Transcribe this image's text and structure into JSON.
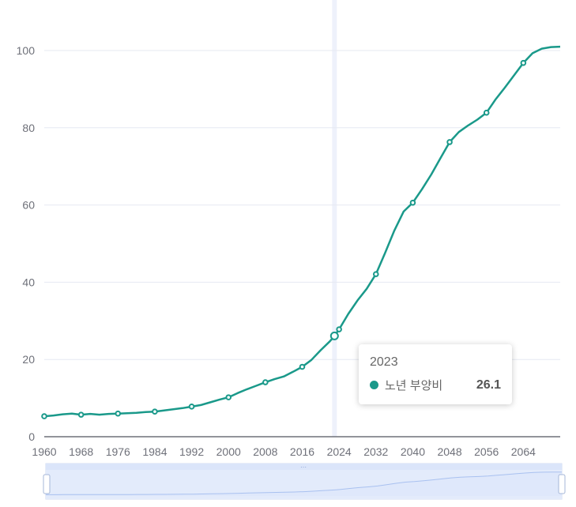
{
  "colors": {
    "line": "#1a998a",
    "grid": "#e6e9f2",
    "axis": "#6e7079",
    "pointer": "#eef1fb",
    "slider_fill": "#dfe8fb",
    "slider_line": "#a9c1f0"
  },
  "tooltip": {
    "year": "2023",
    "series_name": "노년 부양비",
    "value": "26.1"
  },
  "chart_data": {
    "type": "line",
    "title": "",
    "xlabel": "",
    "ylabel": "",
    "xlim": [
      1960,
      2072
    ],
    "ylim": [
      0,
      100
    ],
    "y_ticks": [
      0,
      20,
      40,
      60,
      80,
      100
    ],
    "x_ticks": [
      1960,
      1968,
      1976,
      1984,
      1992,
      2000,
      2008,
      2016,
      2024,
      2032,
      2040,
      2048,
      2056,
      2064
    ],
    "grid": true,
    "highlight": {
      "x": 2023,
      "y": 26.1
    },
    "series": [
      {
        "name": "노년 부양비",
        "x": [
          1960,
          1962,
          1964,
          1966,
          1968,
          1970,
          1972,
          1974,
          1976,
          1978,
          1980,
          1982,
          1984,
          1986,
          1988,
          1990,
          1992,
          1994,
          1996,
          1998,
          2000,
          2002,
          2004,
          2006,
          2008,
          2010,
          2012,
          2014,
          2016,
          2018,
          2020,
          2022,
          2023,
          2024,
          2026,
          2028,
          2030,
          2032,
          2034,
          2036,
          2038,
          2040,
          2042,
          2044,
          2046,
          2048,
          2050,
          2052,
          2054,
          2056,
          2058,
          2060,
          2062,
          2064,
          2066,
          2068,
          2070,
          2072
        ],
        "y": [
          5.3,
          5.5,
          5.8,
          6.0,
          5.7,
          5.9,
          5.7,
          5.9,
          6.0,
          6.1,
          6.2,
          6.4,
          6.5,
          6.8,
          7.1,
          7.4,
          7.8,
          8.2,
          8.9,
          9.6,
          10.2,
          11.3,
          12.3,
          13.2,
          14.1,
          14.9,
          15.6,
          16.8,
          18.1,
          19.9,
          22.4,
          24.7,
          26.1,
          27.8,
          31.8,
          35.3,
          38.3,
          42.1,
          47.6,
          53.4,
          58.3,
          60.6,
          64.1,
          67.9,
          72.1,
          76.3,
          78.9,
          80.6,
          82.1,
          83.9,
          87.4,
          90.4,
          93.6,
          96.8,
          99.3,
          100.5,
          100.9,
          101.0
        ]
      }
    ],
    "marker_x": [
      1960,
      1968,
      1976,
      1984,
      1992,
      2000,
      2008,
      2016,
      2024,
      2032,
      2040,
      2048,
      2056,
      2064
    ]
  }
}
